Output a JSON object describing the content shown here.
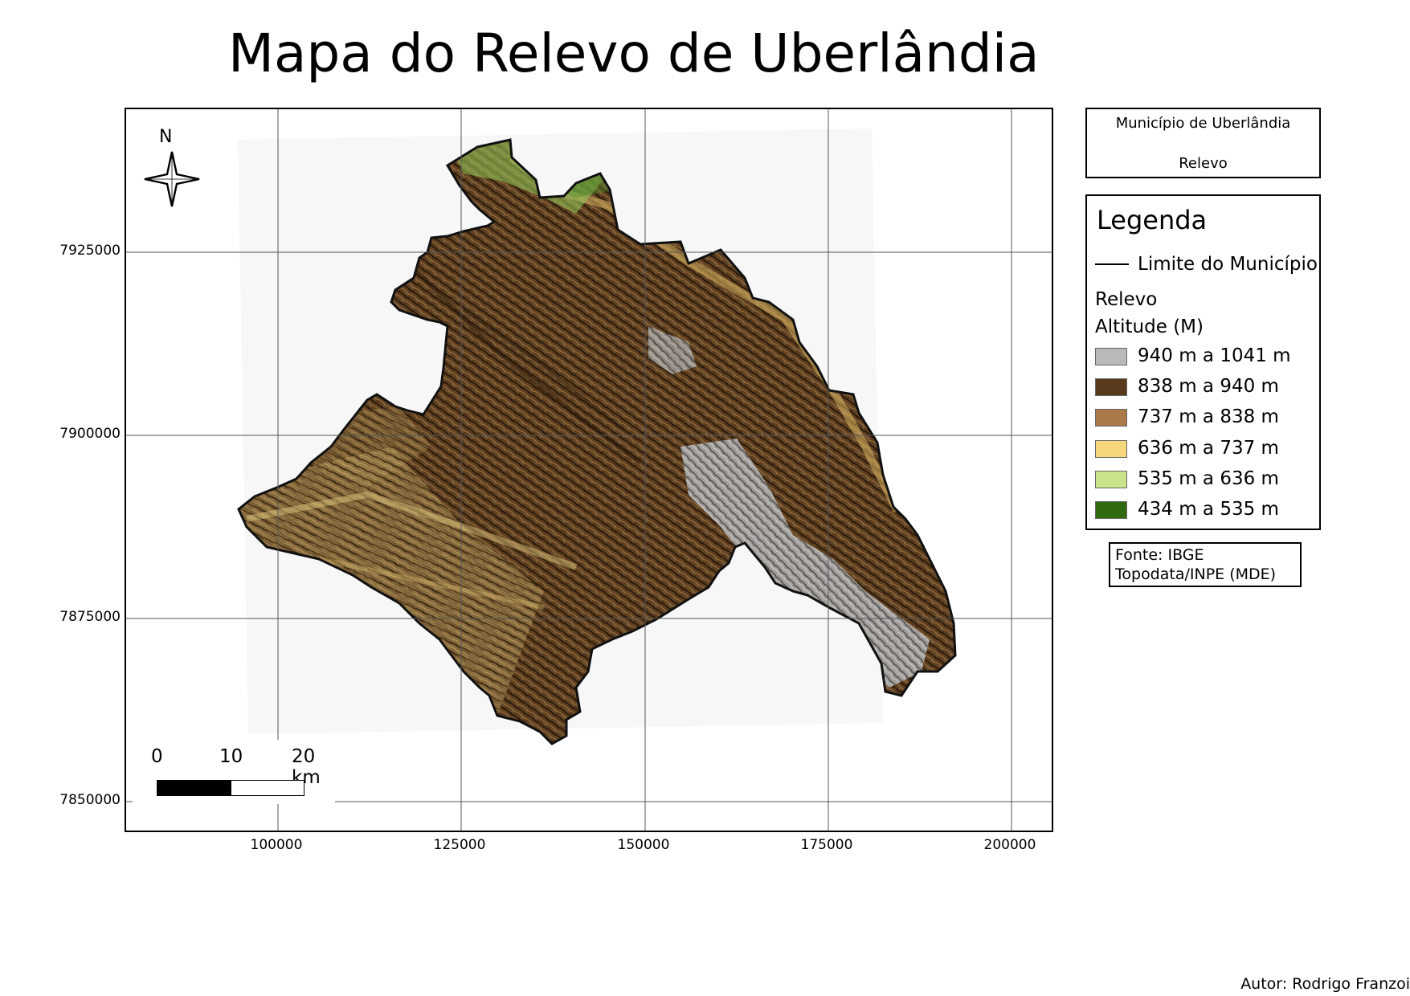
{
  "title": "Mapa do Relevo de Uberlândia",
  "map": {
    "x_ticks": [
      "100000",
      "125000",
      "150000",
      "175000",
      "200000"
    ],
    "y_ticks": [
      "7925000",
      "7900000",
      "7875000",
      "7850000"
    ],
    "north_label": "N",
    "scale_labels": [
      "0",
      "10",
      "20 km"
    ]
  },
  "info_box": {
    "line1": "Município de Uberlândia",
    "line2": "Relevo"
  },
  "legend": {
    "title": "Legenda",
    "boundary_label": "Limite do Município",
    "relief_label": "Relevo",
    "altitude_label": "Altitude (M)",
    "classes": [
      {
        "label": "940 m a 1041 m",
        "color": "#b9b9b9"
      },
      {
        "label": "838 m a 940 m",
        "color": "#5a3a1c"
      },
      {
        "label": "737 m a 838 m",
        "color": "#a9794a"
      },
      {
        "label": "636 m a 737 m",
        "color": "#f7d77c"
      },
      {
        "label": "535 m a 636 m",
        "color": "#c9e48a"
      },
      {
        "label": "434 m a 535 m",
        "color": "#2f6a0f"
      }
    ]
  },
  "source": {
    "line1": "Fonte: IBGE",
    "line2": "Topodata/INPE (MDE)"
  },
  "author": "Autor: Rodrigo Franzoi"
}
